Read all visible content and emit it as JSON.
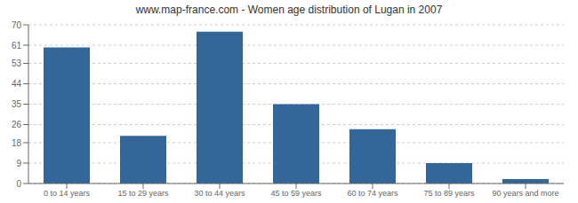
{
  "chart_data": {
    "type": "bar",
    "title": "www.map-france.com - Women age distribution of Lugan in 2007",
    "categories": [
      "0 to 14 years",
      "15 to 29 years",
      "30 to 44 years",
      "45 to 59 years",
      "60 to 74 years",
      "75 to 89 years",
      "90 years and more"
    ],
    "values": [
      60,
      21,
      67,
      35,
      24,
      9,
      2
    ],
    "color": "#336699",
    "ylim": [
      0,
      70
    ],
    "yticks": [
      0,
      9,
      18,
      26,
      35,
      44,
      53,
      61,
      70
    ],
    "grid": true
  }
}
